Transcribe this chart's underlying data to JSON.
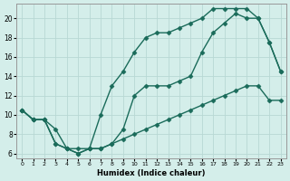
{
  "xlabel": "Humidex (Indice chaleur)",
  "background_color": "#d4eeea",
  "grid_color": "#b8d8d4",
  "line_color": "#1a6b5a",
  "line1_x": [
    0,
    1,
    2,
    3,
    4,
    5,
    6,
    7,
    8,
    9,
    10,
    11,
    12,
    13,
    14,
    15,
    16,
    17,
    18,
    19,
    20,
    21,
    22,
    23
  ],
  "line1_y": [
    10.5,
    9.5,
    9.5,
    8.5,
    6.5,
    6.5,
    6.5,
    10.0,
    13.0,
    14.5,
    16.5,
    18.0,
    18.5,
    18.5,
    19.0,
    19.5,
    20.0,
    21.0,
    21.0,
    21.0,
    21.0,
    20.0,
    17.5,
    14.5
  ],
  "line2_x": [
    0,
    1,
    2,
    3,
    4,
    5,
    6,
    7,
    8,
    9,
    10,
    11,
    12,
    13,
    14,
    15,
    16,
    17,
    18,
    19,
    20,
    21,
    22,
    23
  ],
  "line2_y": [
    10.5,
    9.5,
    9.5,
    7.0,
    6.5,
    6.0,
    6.5,
    6.5,
    7.0,
    7.5,
    8.0,
    8.5,
    9.0,
    9.5,
    10.0,
    10.5,
    11.0,
    11.5,
    12.0,
    12.5,
    13.0,
    13.0,
    11.5,
    11.5
  ],
  "line3_x": [
    0,
    1,
    2,
    3,
    4,
    5,
    6,
    7,
    8,
    9,
    10,
    11,
    12,
    13,
    14,
    15,
    16,
    17,
    18,
    19,
    20,
    21,
    22,
    23
  ],
  "line3_y": [
    10.5,
    9.5,
    9.5,
    7.0,
    6.5,
    6.0,
    6.5,
    6.5,
    7.0,
    8.5,
    12.0,
    13.0,
    13.0,
    13.0,
    13.5,
    14.0,
    16.5,
    18.5,
    19.5,
    20.5,
    20.0,
    20.0,
    17.5,
    14.5
  ],
  "xlim": [
    -0.5,
    23.5
  ],
  "ylim": [
    5.5,
    21.5
  ],
  "yticks": [
    6,
    8,
    10,
    12,
    14,
    16,
    18,
    20
  ],
  "xticks": [
    0,
    1,
    2,
    3,
    4,
    5,
    6,
    7,
    8,
    9,
    10,
    11,
    12,
    13,
    14,
    15,
    16,
    17,
    18,
    19,
    20,
    21,
    22,
    23
  ]
}
